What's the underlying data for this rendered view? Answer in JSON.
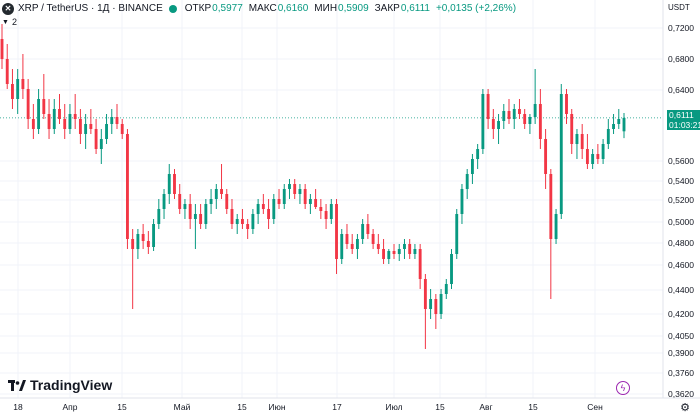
{
  "header": {
    "symbol": "XRP / TetherUS · 1Д · BINANCE",
    "logo_glyph": "✕",
    "ohlc": [
      {
        "label": "ОТКР",
        "value": "0,5977"
      },
      {
        "label": "МАКС",
        "value": "0,6160"
      },
      {
        "label": "МИН",
        "value": "0,5909"
      },
      {
        "label": "ЗАКР",
        "value": "0,6111"
      },
      {
        "label": "",
        "value": "+0,0135 (+2,26%)"
      }
    ],
    "currency": "USDT",
    "indicator_count": "2"
  },
  "badge": {
    "price": "0,6111",
    "countdown": "01:03:21"
  },
  "logo_text": "TradingView",
  "colors": {
    "up": "#089981",
    "down": "#f23645",
    "grid": "#f0f3fa"
  },
  "chart_data": {
    "type": "candlestick",
    "y_ticks": [
      "0,7200",
      "0,6800",
      "0,6400",
      "0,5600",
      "0,5400",
      "0,5200",
      "0,5000",
      "0,4800",
      "0,4600",
      "0,4400",
      "0,4200",
      "0,4050",
      "0,3900",
      "0,3760",
      "0,3620"
    ],
    "x_ticks": [
      "18",
      "Апр",
      "15",
      "Май",
      "15",
      "Июн",
      "17",
      "Июл",
      "15",
      "Авг",
      "15",
      "Сен"
    ],
    "last_price": 0.6111,
    "candles": [
      [
        0.69,
        0.705,
        0.66,
        0.67
      ],
      [
        0.67,
        0.685,
        0.64,
        0.645
      ],
      [
        0.645,
        0.66,
        0.62,
        0.63
      ],
      [
        0.63,
        0.66,
        0.615,
        0.65
      ],
      [
        0.65,
        0.675,
        0.63,
        0.64
      ],
      [
        0.64,
        0.65,
        0.6,
        0.61
      ],
      [
        0.61,
        0.625,
        0.59,
        0.6
      ],
      [
        0.6,
        0.64,
        0.595,
        0.63
      ],
      [
        0.63,
        0.655,
        0.61,
        0.615
      ],
      [
        0.615,
        0.63,
        0.59,
        0.6
      ],
      [
        0.6,
        0.63,
        0.595,
        0.62
      ],
      [
        0.62,
        0.635,
        0.605,
        0.61
      ],
      [
        0.61,
        0.625,
        0.59,
        0.6
      ],
      [
        0.6,
        0.625,
        0.595,
        0.615
      ],
      [
        0.615,
        0.635,
        0.6,
        0.61
      ],
      [
        0.61,
        0.62,
        0.585,
        0.595
      ],
      [
        0.595,
        0.615,
        0.58,
        0.605
      ],
      [
        0.605,
        0.62,
        0.595,
        0.6
      ],
      [
        0.6,
        0.61,
        0.575,
        0.58
      ],
      [
        0.58,
        0.6,
        0.565,
        0.59
      ],
      [
        0.59,
        0.615,
        0.585,
        0.605
      ],
      [
        0.605,
        0.62,
        0.595,
        0.612
      ],
      [
        0.612,
        0.625,
        0.6,
        0.605
      ],
      [
        0.605,
        0.61,
        0.59,
        0.595
      ],
      [
        0.595,
        0.6,
        0.48,
        0.49
      ],
      [
        0.49,
        0.5,
        0.42,
        0.48
      ],
      [
        0.48,
        0.5,
        0.47,
        0.495
      ],
      [
        0.495,
        0.505,
        0.48,
        0.488
      ],
      [
        0.488,
        0.498,
        0.475,
        0.482
      ],
      [
        0.482,
        0.51,
        0.478,
        0.505
      ],
      [
        0.505,
        0.53,
        0.5,
        0.52
      ],
      [
        0.52,
        0.54,
        0.51,
        0.535
      ],
      [
        0.535,
        0.565,
        0.525,
        0.555
      ],
      [
        0.555,
        0.56,
        0.53,
        0.535
      ],
      [
        0.535,
        0.545,
        0.515,
        0.52
      ],
      [
        0.52,
        0.53,
        0.51,
        0.525
      ],
      [
        0.525,
        0.535,
        0.5,
        0.51
      ],
      [
        0.51,
        0.525,
        0.48,
        0.515
      ],
      [
        0.515,
        0.525,
        0.5,
        0.505
      ],
      [
        0.505,
        0.53,
        0.5,
        0.525
      ],
      [
        0.525,
        0.54,
        0.515,
        0.53
      ],
      [
        0.53,
        0.545,
        0.52,
        0.54
      ],
      [
        0.54,
        0.565,
        0.53,
        0.535
      ],
      [
        0.535,
        0.54,
        0.515,
        0.52
      ],
      [
        0.52,
        0.53,
        0.5,
        0.505
      ],
      [
        0.505,
        0.515,
        0.495,
        0.51
      ],
      [
        0.51,
        0.52,
        0.5,
        0.505
      ],
      [
        0.505,
        0.51,
        0.49,
        0.5
      ],
      [
        0.5,
        0.52,
        0.495,
        0.515
      ],
      [
        0.515,
        0.53,
        0.505,
        0.525
      ],
      [
        0.525,
        0.535,
        0.515,
        0.52
      ],
      [
        0.52,
        0.53,
        0.5,
        0.51
      ],
      [
        0.51,
        0.535,
        0.505,
        0.53
      ],
      [
        0.53,
        0.54,
        0.52,
        0.525
      ],
      [
        0.525,
        0.545,
        0.52,
        0.54
      ],
      [
        0.54,
        0.55,
        0.53,
        0.545
      ],
      [
        0.545,
        0.55,
        0.53,
        0.535
      ],
      [
        0.535,
        0.545,
        0.525,
        0.54
      ],
      [
        0.54,
        0.545,
        0.52,
        0.525
      ],
      [
        0.525,
        0.535,
        0.515,
        0.53
      ],
      [
        0.53,
        0.54,
        0.52,
        0.522
      ],
      [
        0.522,
        0.53,
        0.51,
        0.518
      ],
      [
        0.518,
        0.525,
        0.5,
        0.51
      ],
      [
        0.51,
        0.53,
        0.505,
        0.525
      ],
      [
        0.525,
        0.53,
        0.455,
        0.47
      ],
      [
        0.47,
        0.5,
        0.465,
        0.495
      ],
      [
        0.495,
        0.505,
        0.48,
        0.485
      ],
      [
        0.485,
        0.495,
        0.475,
        0.48
      ],
      [
        0.48,
        0.495,
        0.47,
        0.49
      ],
      [
        0.49,
        0.51,
        0.485,
        0.505
      ],
      [
        0.505,
        0.515,
        0.49,
        0.495
      ],
      [
        0.495,
        0.5,
        0.48,
        0.485
      ],
      [
        0.485,
        0.495,
        0.475,
        0.48
      ],
      [
        0.48,
        0.49,
        0.465,
        0.47
      ],
      [
        0.47,
        0.48,
        0.465,
        0.478
      ],
      [
        0.478,
        0.485,
        0.47,
        0.475
      ],
      [
        0.475,
        0.485,
        0.468,
        0.48
      ],
      [
        0.48,
        0.49,
        0.47,
        0.485
      ],
      [
        0.485,
        0.49,
        0.47,
        0.475
      ],
      [
        0.475,
        0.485,
        0.47,
        0.48
      ],
      [
        0.48,
        0.485,
        0.44,
        0.45
      ],
      [
        0.45,
        0.455,
        0.38,
        0.42
      ],
      [
        0.42,
        0.44,
        0.41,
        0.43
      ],
      [
        0.43,
        0.435,
        0.4,
        0.415
      ],
      [
        0.415,
        0.44,
        0.41,
        0.435
      ],
      [
        0.435,
        0.45,
        0.43,
        0.445
      ],
      [
        0.445,
        0.48,
        0.44,
        0.475
      ],
      [
        0.475,
        0.52,
        0.47,
        0.515
      ],
      [
        0.515,
        0.545,
        0.505,
        0.54
      ],
      [
        0.54,
        0.56,
        0.53,
        0.555
      ],
      [
        0.555,
        0.575,
        0.545,
        0.57
      ],
      [
        0.57,
        0.585,
        0.56,
        0.58
      ],
      [
        0.58,
        0.64,
        0.575,
        0.635
      ],
      [
        0.635,
        0.64,
        0.6,
        0.61
      ],
      [
        0.61,
        0.62,
        0.59,
        0.6
      ],
      [
        0.6,
        0.615,
        0.585,
        0.608
      ],
      [
        0.608,
        0.625,
        0.6,
        0.618
      ],
      [
        0.618,
        0.63,
        0.605,
        0.61
      ],
      [
        0.61,
        0.625,
        0.6,
        0.62
      ],
      [
        0.62,
        0.63,
        0.61,
        0.615
      ],
      [
        0.615,
        0.62,
        0.6,
        0.605
      ],
      [
        0.605,
        0.615,
        0.595,
        0.612
      ],
      [
        0.612,
        0.66,
        0.605,
        0.625
      ],
      [
        0.625,
        0.64,
        0.58,
        0.59
      ],
      [
        0.59,
        0.6,
        0.54,
        0.555
      ],
      [
        0.555,
        0.56,
        0.43,
        0.49
      ],
      [
        0.49,
        0.52,
        0.485,
        0.515
      ],
      [
        0.515,
        0.645,
        0.51,
        0.635
      ],
      [
        0.635,
        0.64,
        0.605,
        0.615
      ],
      [
        0.615,
        0.62,
        0.575,
        0.585
      ],
      [
        0.585,
        0.6,
        0.57,
        0.595
      ],
      [
        0.595,
        0.605,
        0.57,
        0.58
      ],
      [
        0.58,
        0.595,
        0.56,
        0.565
      ],
      [
        0.565,
        0.58,
        0.56,
        0.575
      ],
      [
        0.575,
        0.585,
        0.565,
        0.57
      ],
      [
        0.57,
        0.59,
        0.565,
        0.585
      ],
      [
        0.585,
        0.61,
        0.58,
        0.6
      ],
      [
        0.6,
        0.615,
        0.595,
        0.605
      ],
      [
        0.605,
        0.62,
        0.6,
        0.61
      ],
      [
        0.5977,
        0.616,
        0.5909,
        0.6111
      ]
    ]
  }
}
